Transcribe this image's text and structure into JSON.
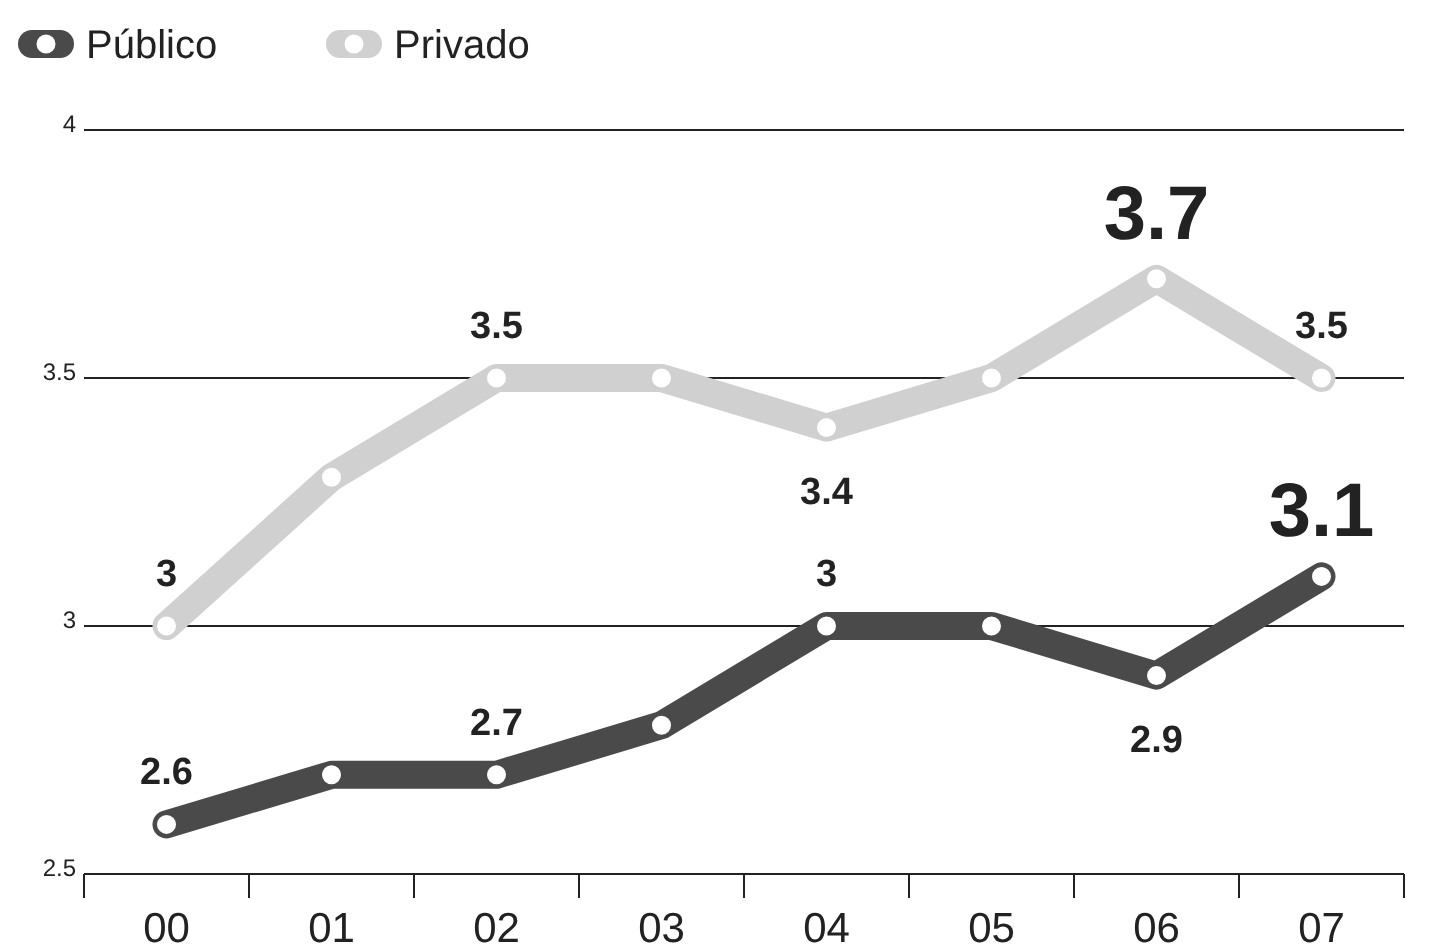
{
  "chart_data": {
    "type": "line",
    "categories": [
      "00",
      "01",
      "02",
      "03",
      "04",
      "05",
      "06",
      "07"
    ],
    "series": [
      {
        "name": "Público",
        "color": "#4a4a4a",
        "values": [
          2.6,
          2.7,
          2.7,
          2.8,
          3.0,
          3.0,
          2.9,
          3.1
        ],
        "value_labels": [
          "2.6",
          null,
          "2.7",
          null,
          "3",
          null,
          "2.9",
          "3.1"
        ]
      },
      {
        "name": "Privado",
        "color": "#d0d0d0",
        "values": [
          3.0,
          3.3,
          3.5,
          3.5,
          3.4,
          3.5,
          3.7,
          3.5
        ],
        "value_labels": [
          "3",
          null,
          "3.5",
          null,
          "3.4",
          null,
          "3.7",
          "3.5"
        ]
      }
    ],
    "ylim": [
      2.5,
      4
    ],
    "yticks": [
      2.5,
      3,
      3.5,
      4
    ],
    "grid": "y",
    "legend": "top left",
    "marker": "circle",
    "line_style": "solid"
  }
}
